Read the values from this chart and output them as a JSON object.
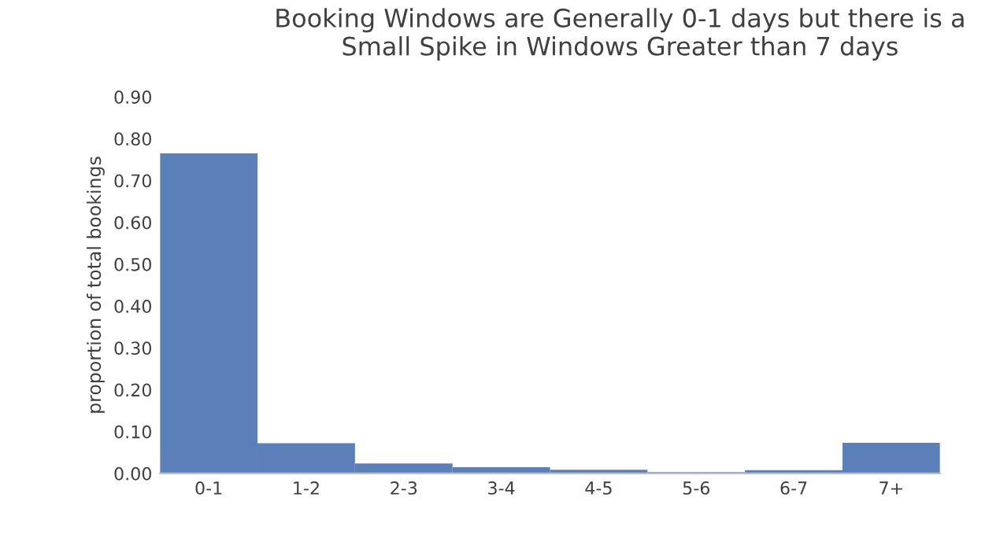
{
  "chart_data": {
    "type": "bar",
    "title": "Booking Windows are Generally 0-1 days but there is a Small Spike in Windows Greater than 7 days",
    "ylabel": "proportion of total bookings",
    "categories": [
      "0-1",
      "1-2",
      "2-3",
      "3-4",
      "4-5",
      "5-6",
      "6-7",
      "7+"
    ],
    "values": [
      0.765,
      0.072,
      0.024,
      0.015,
      0.009,
      0.003,
      0.008,
      0.073
    ],
    "color": "#5a7fb9",
    "ylim": [
      0,
      0.9
    ],
    "yticks": [
      {
        "value": 0,
        "label": "0.00"
      },
      {
        "value": 0.1,
        "label": "0.10"
      },
      {
        "value": 0.2,
        "label": "0.20"
      },
      {
        "value": 0.3,
        "label": "0.30"
      },
      {
        "value": 0.4,
        "label": "0.40"
      },
      {
        "value": 0.5,
        "label": "0.50"
      },
      {
        "value": 0.6,
        "label": "0.60"
      },
      {
        "value": 0.7,
        "label": "0.70"
      },
      {
        "value": 0.8,
        "label": "0.80"
      },
      {
        "value": 0.9,
        "label": "0.90"
      }
    ],
    "grid": false
  }
}
